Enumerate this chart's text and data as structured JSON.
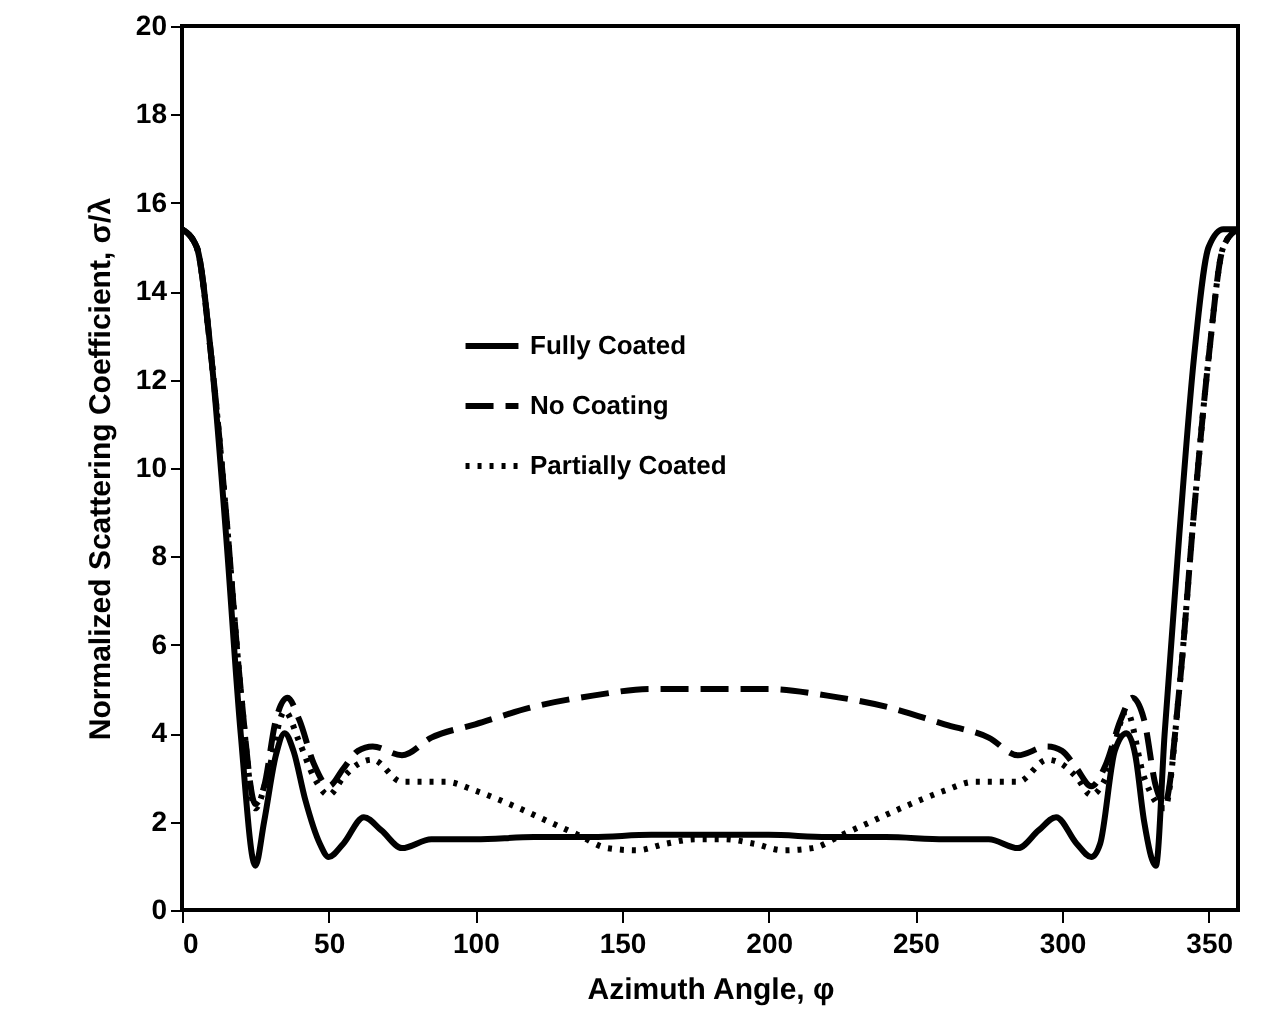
{
  "chart_data": {
    "type": "line",
    "xlabel": "Azimuth Angle, φ",
    "ylabel": "Normalized Scattering Coefficient, σ/λ",
    "xlim": [
      0,
      360
    ],
    "ylim": [
      0,
      20
    ],
    "xticks": [
      0,
      50,
      100,
      150,
      200,
      250,
      300,
      350
    ],
    "yticks": [
      0,
      2,
      4,
      6,
      8,
      10,
      12,
      14,
      16,
      18,
      20
    ],
    "grid": false,
    "legend": "top left",
    "series": [
      {
        "name": "Fully Coated",
        "color": "#000000",
        "line_style": "solid",
        "x": [
          0,
          5,
          10,
          15,
          20,
          25,
          28,
          32,
          35,
          38,
          42,
          47,
          50,
          55,
          62,
          68,
          75,
          85,
          100,
          120,
          140,
          160,
          180,
          200,
          220,
          240,
          260,
          275,
          285,
          292,
          298,
          305,
          310,
          313,
          318,
          322,
          325,
          328,
          332,
          335,
          340,
          345,
          350,
          355,
          360
        ],
        "values": [
          15.4,
          15.0,
          12.5,
          8.5,
          4.0,
          1.0,
          2.0,
          3.5,
          4.0,
          3.6,
          2.5,
          1.5,
          1.2,
          1.5,
          2.1,
          1.8,
          1.4,
          1.6,
          1.6,
          1.65,
          1.65,
          1.7,
          1.7,
          1.7,
          1.65,
          1.65,
          1.6,
          1.6,
          1.4,
          1.8,
          2.1,
          1.5,
          1.2,
          1.5,
          3.6,
          4.0,
          3.5,
          2.0,
          1.0,
          4.0,
          8.5,
          12.5,
          15.0,
          15.4,
          15.4
        ]
      },
      {
        "name": "No Coating",
        "color": "#000000",
        "line_style": "dashed",
        "x": [
          0,
          5,
          10,
          15,
          20,
          25,
          28,
          32,
          36,
          40,
          45,
          50,
          55,
          60,
          65,
          75,
          85,
          100,
          120,
          140,
          160,
          180,
          200,
          220,
          240,
          260,
          275,
          285,
          295,
          300,
          305,
          310,
          315,
          320,
          324,
          328,
          332,
          335,
          340,
          345,
          350,
          355,
          360
        ],
        "values": [
          15.4,
          15.0,
          12.5,
          9.0,
          5.0,
          2.4,
          2.8,
          4.3,
          4.8,
          4.3,
          3.3,
          2.8,
          3.2,
          3.6,
          3.7,
          3.5,
          3.9,
          4.2,
          4.6,
          4.85,
          5.0,
          5.0,
          5.0,
          4.85,
          4.6,
          4.2,
          3.9,
          3.5,
          3.7,
          3.6,
          3.2,
          2.8,
          3.3,
          4.3,
          4.8,
          4.3,
          2.8,
          2.4,
          5.0,
          9.0,
          12.5,
          15.0,
          15.4
        ]
      },
      {
        "name": "Partially Coated",
        "color": "#000000",
        "line_style": "dotted",
        "x": [
          0,
          5,
          10,
          15,
          20,
          25,
          29,
          35,
          40,
          45,
          50,
          55,
          60,
          65,
          75,
          90,
          100,
          115,
          125,
          135,
          145,
          155,
          165,
          175,
          185,
          195,
          205,
          215,
          225,
          235,
          245,
          260,
          270,
          285,
          295,
          300,
          305,
          310,
          315,
          322,
          328,
          335,
          340,
          345,
          350,
          355,
          360
        ],
        "values": [
          15.4,
          15.0,
          12.5,
          9.0,
          5.0,
          2.3,
          3.0,
          4.5,
          3.8,
          3.0,
          2.6,
          3.0,
          3.3,
          3.4,
          2.9,
          2.9,
          2.7,
          2.3,
          2.0,
          1.7,
          1.4,
          1.35,
          1.5,
          1.6,
          1.6,
          1.5,
          1.35,
          1.4,
          1.7,
          2.0,
          2.3,
          2.7,
          2.9,
          2.9,
          3.4,
          3.3,
          3.0,
          2.6,
          3.0,
          4.5,
          3.0,
          2.3,
          5.0,
          9.0,
          12.5,
          15.0,
          15.4
        ]
      }
    ]
  }
}
